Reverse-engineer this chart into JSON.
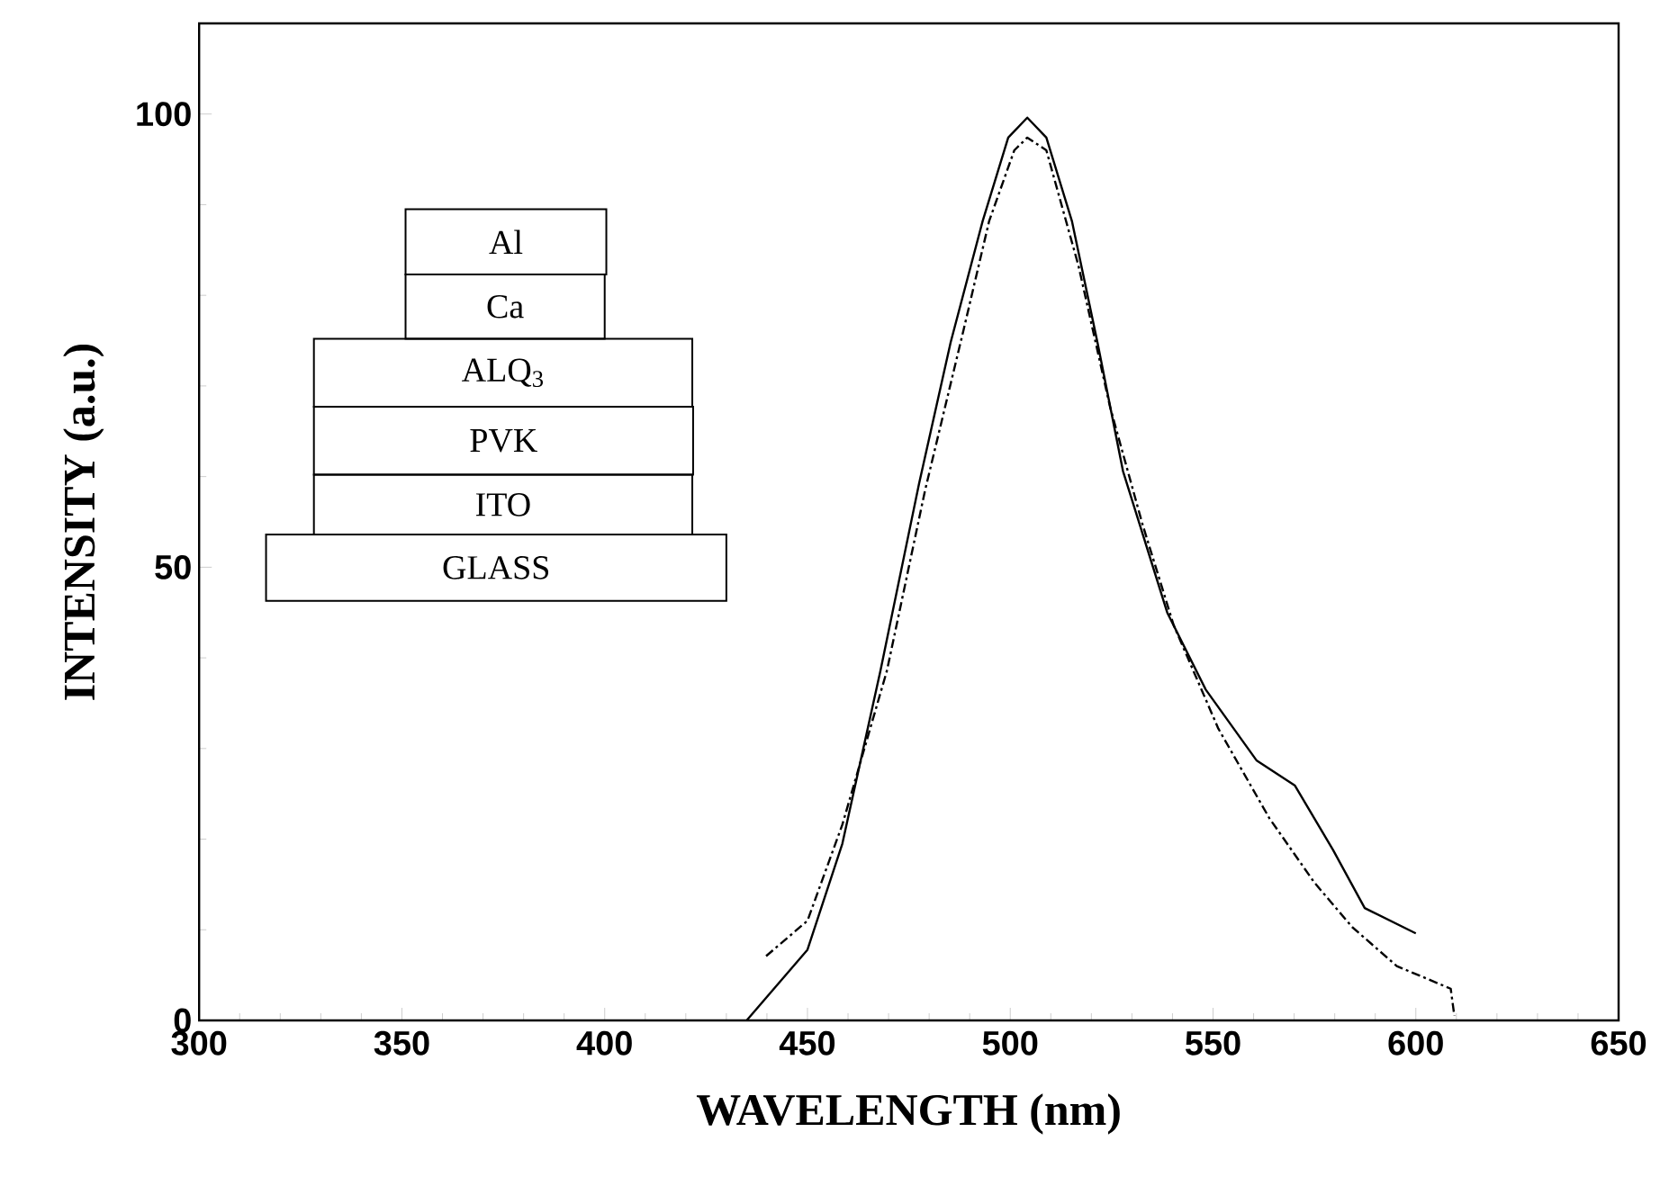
{
  "chart_data": {
    "type": "line",
    "xlabel": "WAVELENGTH (nm)",
    "ylabel": "INTENSITY (a.u.)",
    "xlim": [
      300,
      650
    ],
    "ylim": [
      0,
      110
    ],
    "xticks": [
      300,
      350,
      400,
      450,
      500,
      550,
      600,
      650
    ],
    "yticks": [
      0,
      50,
      100
    ],
    "grid": false,
    "marker": "none",
    "annotations": [
      "Al",
      "Ca",
      "ALQ$_{3}$",
      "PVK",
      "ITO",
      "GLASS"
    ],
    "series": [
      {
        "color": "#000000",
        "line_style": "solid",
        "x": [
          435,
          450,
          458.6,
          468,
          477.5,
          485.3,
          493.2,
          499.5,
          504.2,
          508.9,
          515.2,
          521.5,
          527.8,
          538.7,
          548.2,
          560.7,
          570.2,
          579.6,
          587.4,
          600
        ],
        "values": [
          0,
          7.8,
          19.5,
          38.6,
          59.2,
          74.8,
          88.2,
          97.4,
          99.6,
          97.4,
          88.2,
          74.8,
          60.6,
          45,
          36.5,
          28.7,
          25.9,
          18.8,
          12.4,
          9.6
        ]
      },
      {
        "color": "#000000",
        "line_style": "dashed",
        "x": [
          439.8,
          450,
          458.6,
          469.6,
          479,
          488.5,
          494.8,
          501,
          504.2,
          508.9,
          516.8,
          524.6,
          532.5,
          540.3,
          551.3,
          563.9,
          575,
          584.3,
          595.3,
          608.6,
          609.5
        ],
        "values": [
          7.1,
          11,
          21.6,
          38.6,
          58.5,
          76.2,
          88.2,
          96,
          97.4,
          96,
          83.3,
          67.7,
          54.9,
          43.6,
          32.2,
          22.3,
          15.2,
          10.3,
          6,
          3.5,
          0.5
        ]
      }
    ]
  }
}
